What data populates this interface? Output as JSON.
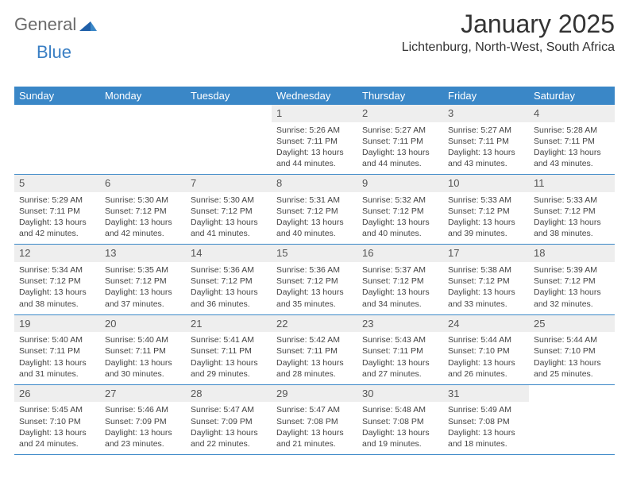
{
  "brand": {
    "part1": "General",
    "part2": "Blue"
  },
  "title": "January 2025",
  "location": "Lichtenburg, North-West, South Africa",
  "colors": {
    "header_bg": "#3a87c7",
    "header_text": "#ffffff",
    "daynum_bg": "#eeeeee",
    "daynum_text": "#555555",
    "body_text": "#444444",
    "rule": "#3a87c7",
    "logo_gray": "#6a6a6a",
    "logo_blue": "#3a7fc4"
  },
  "weekdays": [
    "Sunday",
    "Monday",
    "Tuesday",
    "Wednesday",
    "Thursday",
    "Friday",
    "Saturday"
  ],
  "weeks": [
    [
      {
        "n": "",
        "sr": "",
        "ss": "",
        "dl": ""
      },
      {
        "n": "",
        "sr": "",
        "ss": "",
        "dl": ""
      },
      {
        "n": "",
        "sr": "",
        "ss": "",
        "dl": ""
      },
      {
        "n": "1",
        "sr": "5:26 AM",
        "ss": "7:11 PM",
        "dl": "13 hours and 44 minutes."
      },
      {
        "n": "2",
        "sr": "5:27 AM",
        "ss": "7:11 PM",
        "dl": "13 hours and 44 minutes."
      },
      {
        "n": "3",
        "sr": "5:27 AM",
        "ss": "7:11 PM",
        "dl": "13 hours and 43 minutes."
      },
      {
        "n": "4",
        "sr": "5:28 AM",
        "ss": "7:11 PM",
        "dl": "13 hours and 43 minutes."
      }
    ],
    [
      {
        "n": "5",
        "sr": "5:29 AM",
        "ss": "7:11 PM",
        "dl": "13 hours and 42 minutes."
      },
      {
        "n": "6",
        "sr": "5:30 AM",
        "ss": "7:12 PM",
        "dl": "13 hours and 42 minutes."
      },
      {
        "n": "7",
        "sr": "5:30 AM",
        "ss": "7:12 PM",
        "dl": "13 hours and 41 minutes."
      },
      {
        "n": "8",
        "sr": "5:31 AM",
        "ss": "7:12 PM",
        "dl": "13 hours and 40 minutes."
      },
      {
        "n": "9",
        "sr": "5:32 AM",
        "ss": "7:12 PM",
        "dl": "13 hours and 40 minutes."
      },
      {
        "n": "10",
        "sr": "5:33 AM",
        "ss": "7:12 PM",
        "dl": "13 hours and 39 minutes."
      },
      {
        "n": "11",
        "sr": "5:33 AM",
        "ss": "7:12 PM",
        "dl": "13 hours and 38 minutes."
      }
    ],
    [
      {
        "n": "12",
        "sr": "5:34 AM",
        "ss": "7:12 PM",
        "dl": "13 hours and 38 minutes."
      },
      {
        "n": "13",
        "sr": "5:35 AM",
        "ss": "7:12 PM",
        "dl": "13 hours and 37 minutes."
      },
      {
        "n": "14",
        "sr": "5:36 AM",
        "ss": "7:12 PM",
        "dl": "13 hours and 36 minutes."
      },
      {
        "n": "15",
        "sr": "5:36 AM",
        "ss": "7:12 PM",
        "dl": "13 hours and 35 minutes."
      },
      {
        "n": "16",
        "sr": "5:37 AM",
        "ss": "7:12 PM",
        "dl": "13 hours and 34 minutes."
      },
      {
        "n": "17",
        "sr": "5:38 AM",
        "ss": "7:12 PM",
        "dl": "13 hours and 33 minutes."
      },
      {
        "n": "18",
        "sr": "5:39 AM",
        "ss": "7:12 PM",
        "dl": "13 hours and 32 minutes."
      }
    ],
    [
      {
        "n": "19",
        "sr": "5:40 AM",
        "ss": "7:11 PM",
        "dl": "13 hours and 31 minutes."
      },
      {
        "n": "20",
        "sr": "5:40 AM",
        "ss": "7:11 PM",
        "dl": "13 hours and 30 minutes."
      },
      {
        "n": "21",
        "sr": "5:41 AM",
        "ss": "7:11 PM",
        "dl": "13 hours and 29 minutes."
      },
      {
        "n": "22",
        "sr": "5:42 AM",
        "ss": "7:11 PM",
        "dl": "13 hours and 28 minutes."
      },
      {
        "n": "23",
        "sr": "5:43 AM",
        "ss": "7:11 PM",
        "dl": "13 hours and 27 minutes."
      },
      {
        "n": "24",
        "sr": "5:44 AM",
        "ss": "7:10 PM",
        "dl": "13 hours and 26 minutes."
      },
      {
        "n": "25",
        "sr": "5:44 AM",
        "ss": "7:10 PM",
        "dl": "13 hours and 25 minutes."
      }
    ],
    [
      {
        "n": "26",
        "sr": "5:45 AM",
        "ss": "7:10 PM",
        "dl": "13 hours and 24 minutes."
      },
      {
        "n": "27",
        "sr": "5:46 AM",
        "ss": "7:09 PM",
        "dl": "13 hours and 23 minutes."
      },
      {
        "n": "28",
        "sr": "5:47 AM",
        "ss": "7:09 PM",
        "dl": "13 hours and 22 minutes."
      },
      {
        "n": "29",
        "sr": "5:47 AM",
        "ss": "7:08 PM",
        "dl": "13 hours and 21 minutes."
      },
      {
        "n": "30",
        "sr": "5:48 AM",
        "ss": "7:08 PM",
        "dl": "13 hours and 19 minutes."
      },
      {
        "n": "31",
        "sr": "5:49 AM",
        "ss": "7:08 PM",
        "dl": "13 hours and 18 minutes."
      },
      {
        "n": "",
        "sr": "",
        "ss": "",
        "dl": ""
      }
    ]
  ],
  "labels": {
    "sunrise": "Sunrise: ",
    "sunset": "Sunset: ",
    "daylight": "Daylight: "
  }
}
